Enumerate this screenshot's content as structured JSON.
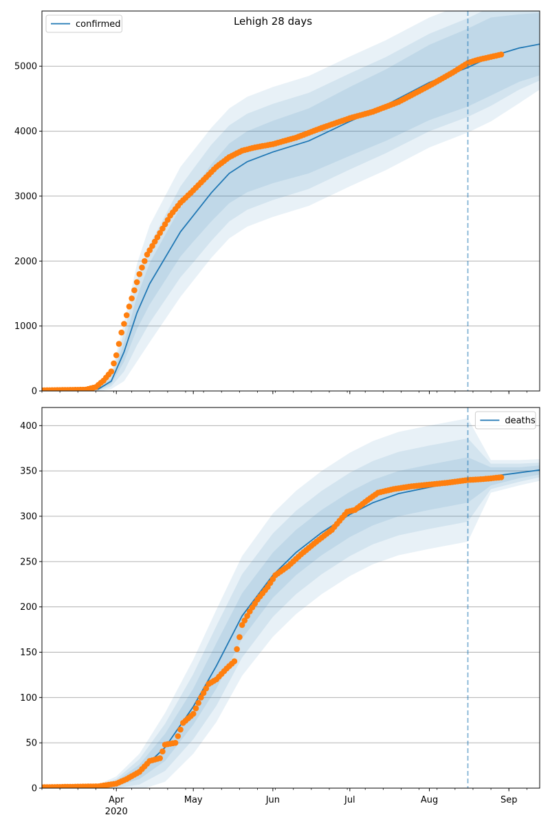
{
  "figure": {
    "title": "Lehigh 28 days"
  },
  "chart_data": [
    {
      "type": "line",
      "title": "Lehigh 28 days",
      "legend": {
        "label": "confirmed",
        "placement": "top-left"
      },
      "ylim": [
        0,
        5850
      ],
      "yticks": [
        0,
        1000,
        2000,
        3000,
        4000,
        5000
      ],
      "grid": "horizontal",
      "forecast_split": "2020-08-16",
      "xlim": [
        "2020-03-03",
        "2020-09-13"
      ],
      "x_month_ticks": [
        {
          "date": "2020-04-01",
          "label": "Apr",
          "sublabel": "2020"
        },
        {
          "date": "2020-05-01",
          "label": "May"
        },
        {
          "date": "2020-06-01",
          "label": "Jun"
        },
        {
          "date": "2020-07-01",
          "label": "Jul"
        },
        {
          "date": "2020-08-01",
          "label": "Aug"
        },
        {
          "date": "2020-09-01",
          "label": "Sep"
        }
      ],
      "model": {
        "name": "confirmed",
        "x": [
          "2020-03-03",
          "2020-03-20",
          "2020-03-25",
          "2020-03-30",
          "2020-04-04",
          "2020-04-09",
          "2020-04-14",
          "2020-04-20",
          "2020-04-26",
          "2020-05-01",
          "2020-05-08",
          "2020-05-15",
          "2020-05-22",
          "2020-06-01",
          "2020-06-15",
          "2020-07-01",
          "2020-07-15",
          "2020-08-01",
          "2020-08-16",
          "2020-08-25",
          "2020-09-05",
          "2020-09-13"
        ],
        "y": [
          0,
          10,
          30,
          150,
          600,
          1200,
          1650,
          2050,
          2450,
          2700,
          3050,
          3350,
          3530,
          3680,
          3850,
          4150,
          4400,
          4750,
          4980,
          5150,
          5280,
          5340
        ],
        "band_half_widths": [
          [
            0,
            5,
            15,
            40,
            150,
            250,
            320,
            350,
            380,
            400,
            440,
            460,
            470,
            480,
            500,
            530,
            550,
            580,
            600,
            600,
            520,
            480
          ],
          [
            0,
            10,
            25,
            80,
            300,
            500,
            600,
            650,
            700,
            720,
            740,
            740,
            740,
            740,
            740,
            740,
            740,
            750,
            760,
            760,
            640,
            560
          ],
          [
            0,
            15,
            40,
            120,
            450,
            750,
            900,
            950,
            1000,
            1000,
            1000,
            1000,
            1000,
            1000,
            1000,
            1000,
            1000,
            1000,
            1000,
            1000,
            850,
            700
          ]
        ]
      },
      "observed": {
        "name": "confirmed observed",
        "x": [
          "2020-03-03",
          "2020-03-20",
          "2020-03-24",
          "2020-03-27",
          "2020-03-30",
          "2020-04-01",
          "2020-04-03",
          "2020-04-06",
          "2020-04-08",
          "2020-04-10",
          "2020-04-13",
          "2020-04-16",
          "2020-04-19",
          "2020-04-22",
          "2020-04-26",
          "2020-04-30",
          "2020-05-05",
          "2020-05-10",
          "2020-05-15",
          "2020-05-20",
          "2020-05-25",
          "2020-06-01",
          "2020-06-10",
          "2020-06-20",
          "2020-07-01",
          "2020-07-10",
          "2020-07-20",
          "2020-08-01",
          "2020-08-10",
          "2020-08-16",
          "2020-08-20",
          "2020-08-29"
        ],
        "y": [
          10,
          20,
          60,
          160,
          300,
          550,
          900,
          1300,
          1550,
          1800,
          2100,
          2300,
          2500,
          2700,
          2900,
          3050,
          3250,
          3450,
          3600,
          3700,
          3750,
          3800,
          3900,
          4050,
          4200,
          4300,
          4450,
          4700,
          4900,
          5050,
          5100,
          5180
        ]
      }
    },
    {
      "type": "line",
      "title": "",
      "legend": {
        "label": "deaths",
        "placement": "top-right"
      },
      "ylim": [
        0,
        420
      ],
      "yticks": [
        0,
        50,
        100,
        150,
        200,
        250,
        300,
        350,
        400
      ],
      "grid": "horizontal",
      "forecast_split": "2020-08-16",
      "xlim": [
        "2020-03-03",
        "2020-09-13"
      ],
      "x_month_ticks": [
        {
          "date": "2020-04-01",
          "label": "Apr",
          "sublabel": "2020"
        },
        {
          "date": "2020-05-01",
          "label": "May"
        },
        {
          "date": "2020-06-01",
          "label": "Jun"
        },
        {
          "date": "2020-07-01",
          "label": "Jul"
        },
        {
          "date": "2020-08-01",
          "label": "Aug"
        },
        {
          "date": "2020-09-01",
          "label": "Sep"
        }
      ],
      "model": {
        "name": "deaths",
        "x": [
          "2020-03-03",
          "2020-03-25",
          "2020-04-01",
          "2020-04-10",
          "2020-04-20",
          "2020-05-01",
          "2020-05-10",
          "2020-05-20",
          "2020-06-01",
          "2020-06-10",
          "2020-06-20",
          "2020-07-01",
          "2020-07-10",
          "2020-07-20",
          "2020-08-01",
          "2020-08-16",
          "2020-08-25",
          "2020-09-05",
          "2020-09-13"
        ],
        "y": [
          0,
          1,
          5,
          18,
          45,
          90,
          135,
          190,
          235,
          260,
          282,
          302,
          315,
          325,
          332,
          340,
          344,
          348,
          351
        ],
        "band_half_widths": [
          [
            0,
            1,
            3,
            8,
            15,
            20,
            25,
            25,
            25,
            25,
            25,
            25,
            25,
            25,
            25,
            25,
            10,
            6,
            5
          ],
          [
            0,
            2,
            5,
            14,
            26,
            36,
            44,
            46,
            46,
            46,
            46,
            46,
            46,
            46,
            46,
            46,
            14,
            10,
            8
          ],
          [
            0,
            3,
            8,
            20,
            38,
            52,
            62,
            66,
            68,
            68,
            68,
            68,
            68,
            68,
            68,
            68,
            18,
            14,
            12
          ]
        ]
      },
      "observed": {
        "name": "deaths observed",
        "x": [
          "2020-03-03",
          "2020-03-25",
          "2020-04-01",
          "2020-04-05",
          "2020-04-10",
          "2020-04-14",
          "2020-04-18",
          "2020-04-20",
          "2020-04-24",
          "2020-04-27",
          "2020-05-01",
          "2020-05-04",
          "2020-05-07",
          "2020-05-10",
          "2020-05-14",
          "2020-05-17",
          "2020-05-20",
          "2020-05-23",
          "2020-05-26",
          "2020-05-30",
          "2020-06-02",
          "2020-06-07",
          "2020-06-12",
          "2020-06-18",
          "2020-06-24",
          "2020-06-30",
          "2020-07-03",
          "2020-07-08",
          "2020-07-12",
          "2020-07-18",
          "2020-07-25",
          "2020-08-01",
          "2020-08-08",
          "2020-08-16",
          "2020-08-22",
          "2020-08-29"
        ],
        "y": [
          1,
          2,
          5,
          10,
          18,
          30,
          33,
          48,
          50,
          72,
          82,
          100,
          115,
          120,
          132,
          140,
          180,
          195,
          208,
          222,
          235,
          245,
          258,
          272,
          285,
          305,
          307,
          318,
          326,
          330,
          333,
          335,
          337,
          340,
          341,
          343
        ]
      }
    }
  ]
}
